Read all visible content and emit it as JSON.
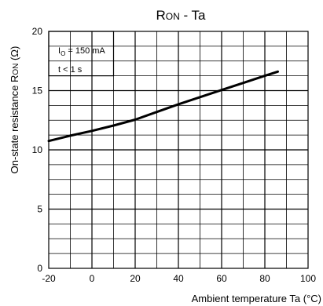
{
  "chart_data": {
    "type": "line",
    "title": "RON - Ta",
    "title_main": "R",
    "title_sub": "ON",
    "title_rest": " - Ta",
    "xlabel": "Ambient temperature Ta (°C)",
    "ylabel": "On-state resistance RON (Ω)",
    "ylabel_pre": "On-state resistance R",
    "ylabel_sub": "ON",
    "ylabel_post": " (Ω)",
    "xlim": [
      -20,
      100
    ],
    "ylim": [
      0,
      20
    ],
    "x_ticks": [
      "-20",
      "0",
      "20",
      "40",
      "60",
      "80",
      "100"
    ],
    "y_ticks": [
      "0",
      "5",
      "10",
      "15",
      "20"
    ],
    "annotations": {
      "line1_pre": "I",
      "line1_sub": "O",
      "line1_post": " = 150 mA",
      "line2": "t < 1 s"
    },
    "series": [
      {
        "x": [
          -20,
          -10,
          0,
          10,
          20,
          30,
          40,
          50,
          60,
          70,
          80,
          86
        ],
        "y": [
          10.75,
          11.2,
          11.6,
          12.05,
          12.55,
          13.2,
          13.85,
          14.45,
          15.05,
          15.65,
          16.25,
          16.6
        ]
      }
    ],
    "color": "#000000",
    "grid": true
  }
}
